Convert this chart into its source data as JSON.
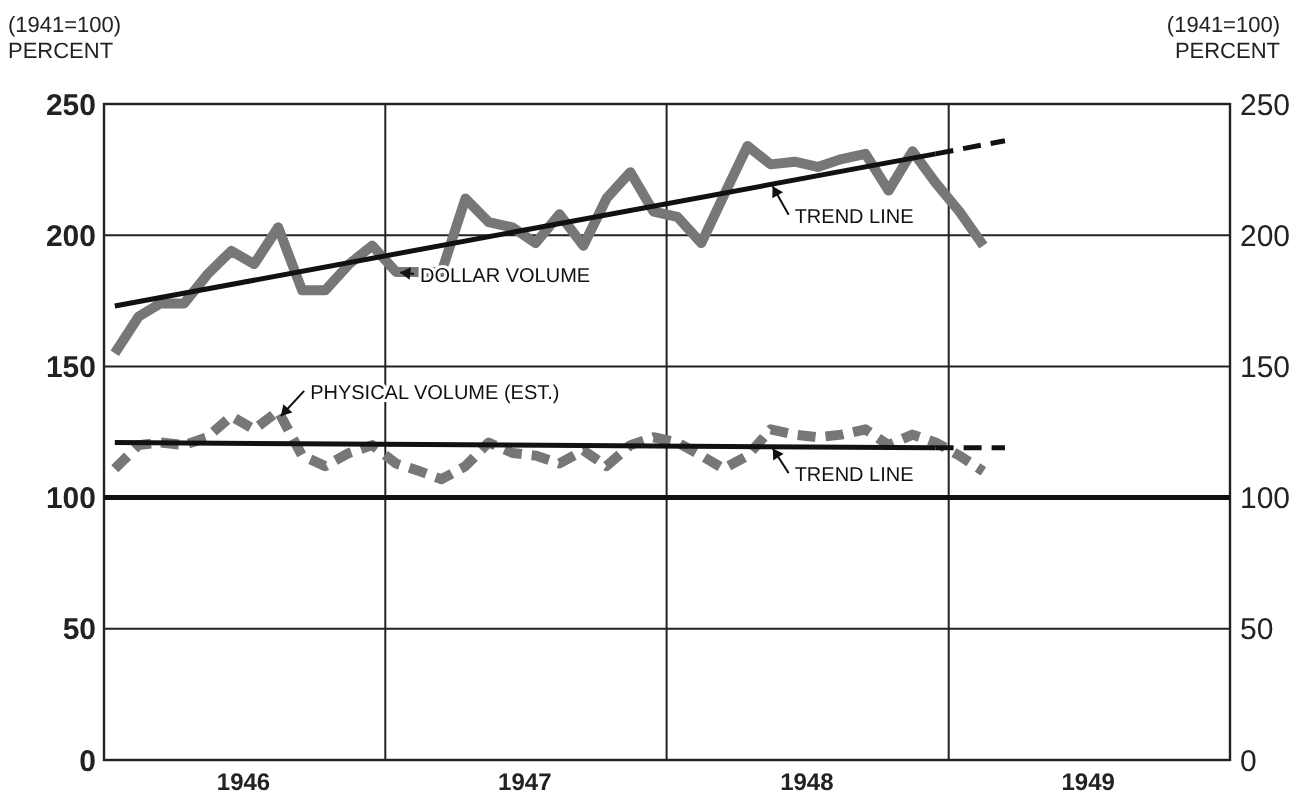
{
  "chart_data": {
    "type": "line",
    "ylabel": "(1941=100)\nPERCENT",
    "y2label": "(1941=100)\nPERCENT",
    "x": [
      "1946-01-15",
      "1946-02-15",
      "1946-03-15",
      "1946-04-15",
      "1946-05-15",
      "1946-06-15",
      "1946-07-15",
      "1946-08-15",
      "1946-09-15",
      "1946-10-15",
      "1946-11-15",
      "1946-12-15",
      "1947-01-15",
      "1947-02-15",
      "1947-03-15",
      "1947-04-15",
      "1947-05-15",
      "1947-06-15",
      "1947-07-15",
      "1947-08-15",
      "1947-09-15",
      "1947-10-15",
      "1947-11-15",
      "1947-12-15",
      "1948-01-15",
      "1948-02-15",
      "1948-03-15",
      "1948-04-15",
      "1948-05-15",
      "1948-06-15",
      "1948-07-15",
      "1948-08-15",
      "1948-09-15",
      "1948-10-15",
      "1948-11-15",
      "1948-12-15",
      "1949-01-15",
      "1949-02-15"
    ],
    "series": [
      {
        "color": "#777777",
        "line_style": "solid",
        "values": [
          155,
          169,
          174,
          174,
          185,
          194,
          189,
          203,
          179,
          179,
          189,
          196,
          186,
          186,
          186,
          214,
          205,
          203,
          197,
          208,
          196,
          214,
          224,
          209,
          207,
          197,
          215,
          234,
          227,
          228,
          226,
          229,
          231,
          217,
          232,
          220,
          209,
          196
        ]
      },
      {
        "color": "#777777",
        "line_style": "dashed",
        "values": [
          111,
          120,
          121,
          120,
          123,
          131,
          126,
          133,
          116,
          112,
          117,
          120,
          113,
          110,
          107,
          112,
          121,
          117,
          116,
          113,
          118,
          112,
          120,
          123,
          121,
          116,
          111,
          116,
          126,
          124,
          123,
          124,
          126,
          120,
          124,
          121,
          116,
          110
        ]
      },
      {
        "type": "line",
        "color": "#111111",
        "line_style": "solid",
        "x": [
          "1946-01-15",
          "1948-12-15"
        ],
        "values": [
          173,
          231
        ]
      },
      {
        "type": "line",
        "color": "#111111",
        "line_style": "dashed",
        "x": [
          "1948-12-15",
          "1949-03-15"
        ],
        "values": [
          231,
          236
        ]
      },
      {
        "type": "line",
        "color": "#111111",
        "line_style": "solid",
        "x": [
          "1946-01-15",
          "1948-12-15"
        ],
        "values": [
          121,
          119
        ]
      },
      {
        "type": "line",
        "color": "#111111",
        "line_style": "dashed",
        "x": [
          "1948-12-15",
          "1949-03-15"
        ],
        "values": [
          119,
          119
        ]
      }
    ],
    "xlim": [
      "1946-01",
      "1950-01"
    ],
    "xticks": [
      {
        "value": "1946-01",
        "label": null
      },
      {
        "value": "1946-07",
        "label": "1946"
      },
      {
        "value": "1947-01",
        "label": null
      },
      {
        "value": "1947-07",
        "label": "1947"
      },
      {
        "value": "1948-01",
        "label": null
      },
      {
        "value": "1948-07",
        "label": "1948"
      },
      {
        "value": "1949-01",
        "label": null
      },
      {
        "value": "1949-07",
        "label": "1949"
      },
      {
        "value": "1950-01",
        "label": null
      }
    ],
    "ylim": [
      0,
      250
    ],
    "yticks": [
      0,
      50,
      100,
      150,
      200,
      250
    ],
    "y2lim": [
      0,
      250
    ],
    "y2ticks": [
      0,
      50,
      100,
      150,
      200,
      250
    ],
    "ref_lines": [
      {
        "axis": "y",
        "value": 100,
        "color": "#111111"
      }
    ],
    "annotations": [
      {
        "text": "DOLLAR VOLUME",
        "x": "1947-01-15",
        "y": 186
      },
      {
        "text": "TREND LINE",
        "x": "1948-05-15",
        "y": 220
      },
      {
        "text": "PHYSICAL VOLUME (EST.)",
        "x": "1946-08-15",
        "y": 130
      },
      {
        "text": "TREND LINE",
        "x": "1948-05-15",
        "y": 120
      }
    ],
    "grid": true
  }
}
